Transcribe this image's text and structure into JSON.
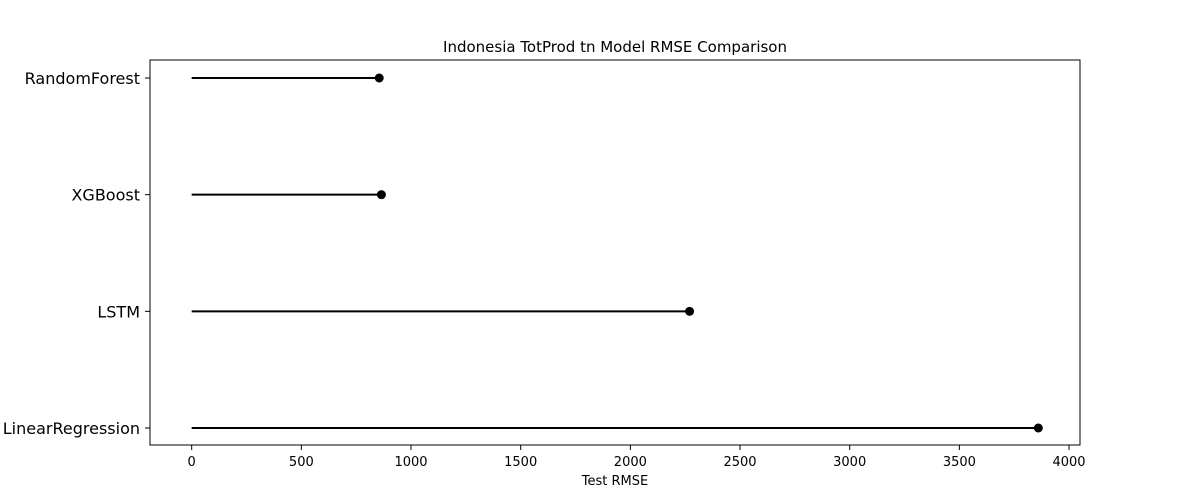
{
  "chart_data": {
    "type": "lollipop",
    "orientation": "horizontal",
    "title": "Indonesia TotProd tn Model RMSE Comparison",
    "xlabel": "Test RMSE",
    "ylabel": "",
    "xlim": [
      -190,
      4050
    ],
    "xticks": [
      0,
      500,
      1000,
      1500,
      2000,
      2500,
      3000,
      3500,
      4000
    ],
    "xtick_labels": [
      "0",
      "500",
      "1000",
      "1500",
      "2000",
      "2500",
      "3000",
      "3500",
      "4000"
    ],
    "categories": [
      "RandomForest",
      "XGBoost",
      "LSTM",
      "LinearRegression"
    ],
    "values": [
      855,
      865,
      2270,
      3860
    ],
    "color": "#000000",
    "grid": false,
    "legend": "none"
  }
}
